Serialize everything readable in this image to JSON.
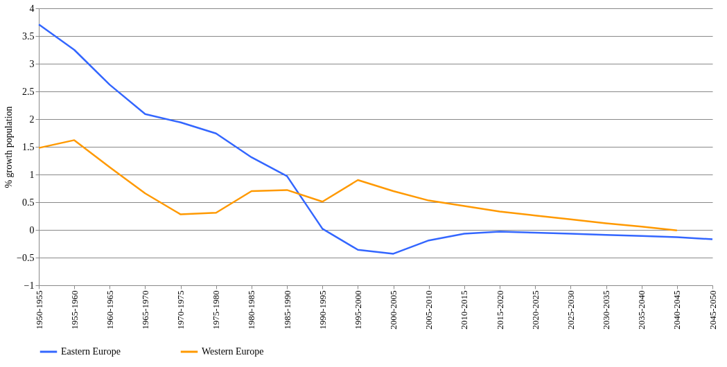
{
  "chart_data": {
    "type": "line",
    "ylabel": "% growth population",
    "categories": [
      "1950-1955",
      "1955-1960",
      "1960-1965",
      "1965-1970",
      "1970-1975",
      "1975-1980",
      "1980-1985",
      "1985-1990",
      "1990-1995",
      "1995-2000",
      "2000-2005",
      "2005-2010",
      "2010-2015",
      "2015-2020",
      "2020-2025",
      "2025-2030",
      "2030-2035",
      "2035-2040",
      "2040-2045",
      "2045-2050"
    ],
    "series": [
      {
        "name": "Eastern Europe",
        "color": "#3366ff",
        "values": [
          3.71,
          3.25,
          2.62,
          2.09,
          1.94,
          1.74,
          1.31,
          0.97,
          0.02,
          -0.36,
          -0.43,
          -0.19,
          -0.07,
          -0.03,
          -0.05,
          -0.07,
          -0.09,
          -0.11,
          -0.13,
          -0.17
        ]
      },
      {
        "name": "Western Europe",
        "color": "#ff9900",
        "values": [
          1.48,
          1.62,
          1.13,
          0.66,
          0.28,
          0.31,
          0.7,
          0.72,
          0.51,
          0.9,
          0.7,
          0.53,
          0.43,
          0.33,
          0.26,
          0.19,
          0.12,
          0.06,
          -0.01,
          null
        ]
      }
    ],
    "ylim": [
      -1,
      4
    ],
    "yticks": [
      -1,
      -0.5,
      0,
      0.5,
      1,
      1.5,
      2,
      2.5,
      3,
      3.5,
      4
    ],
    "grid": "y",
    "legend": "bottom",
    "marker": "none",
    "line_style": "solid"
  }
}
